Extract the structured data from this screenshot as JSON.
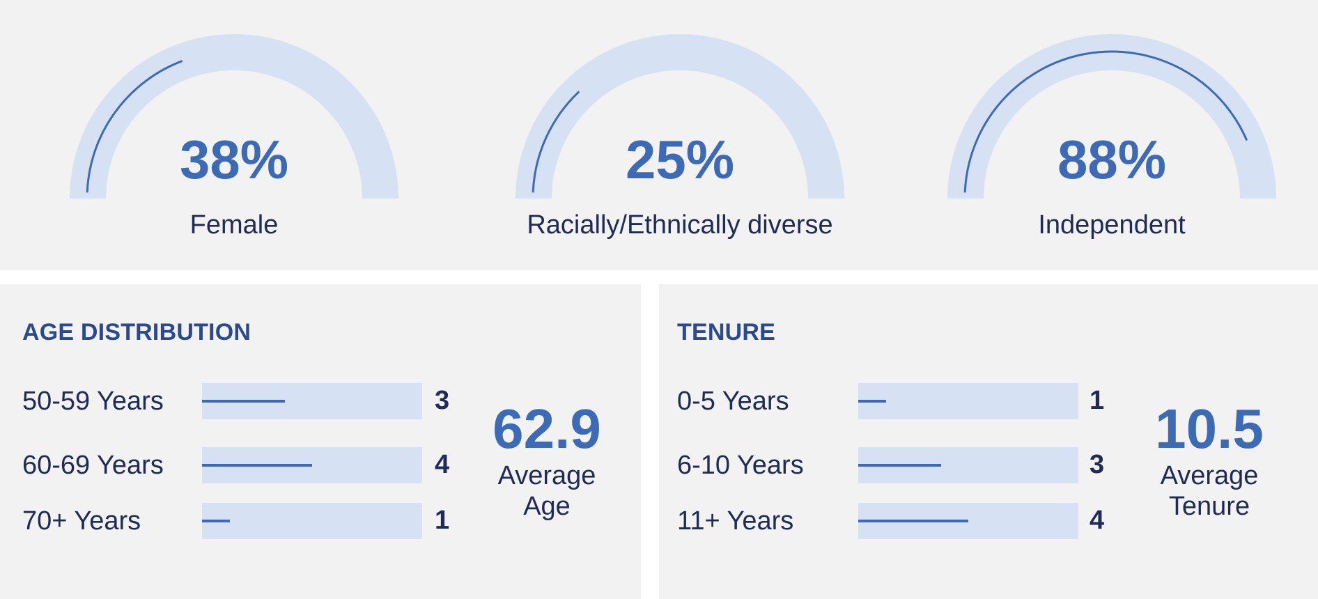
{
  "gauges": [
    {
      "value_label": "38%",
      "value": 38,
      "label": "Female"
    },
    {
      "value_label": "25%",
      "value": 25,
      "label": "Racially/Ethnically diverse"
    },
    {
      "value_label": "88%",
      "value": 88,
      "label": "Independent"
    }
  ],
  "age": {
    "title": "AGE DISTRIBUTION",
    "rows": [
      {
        "label": "50-59 Years",
        "count": "3",
        "value": 3
      },
      {
        "label": "60-69 Years",
        "count": "4",
        "value": 4
      },
      {
        "label": "70+ Years",
        "count": "1",
        "value": 1
      }
    ],
    "average_value": "62.9",
    "average_label_line1": "Average",
    "average_label_line2": "Age"
  },
  "tenure": {
    "title": "TENURE",
    "rows": [
      {
        "label": "0-5 Years",
        "count": "1",
        "value": 1
      },
      {
        "label": "6-10 Years",
        "count": "3",
        "value": 3
      },
      {
        "label": "11+ Years",
        "count": "4",
        "value": 4
      }
    ],
    "average_value": "10.5",
    "average_label_line1": "Average",
    "average_label_line2": "Tenure"
  },
  "colors": {
    "accent": "#3c6ab4",
    "track": "#d6e1f3",
    "text": "#1f2a55",
    "title": "#2a4a8c",
    "panel": "#f2f2f2"
  },
  "chart_data": [
    {
      "type": "gauge",
      "categories": [
        "Female",
        "Racially/Ethnically diverse",
        "Independent"
      ],
      "values": [
        38,
        25,
        88
      ],
      "unit": "%",
      "ylim": [
        0,
        100
      ]
    },
    {
      "type": "bar",
      "title": "AGE DISTRIBUTION",
      "categories": [
        "50-59 Years",
        "60-69 Years",
        "70+ Years"
      ],
      "values": [
        3,
        4,
        1
      ],
      "average": 62.9
    },
    {
      "type": "bar",
      "title": "TENURE",
      "categories": [
        "0-5 Years",
        "6-10 Years",
        "11+ Years"
      ],
      "values": [
        1,
        3,
        4
      ],
      "average": 10.5
    }
  ]
}
